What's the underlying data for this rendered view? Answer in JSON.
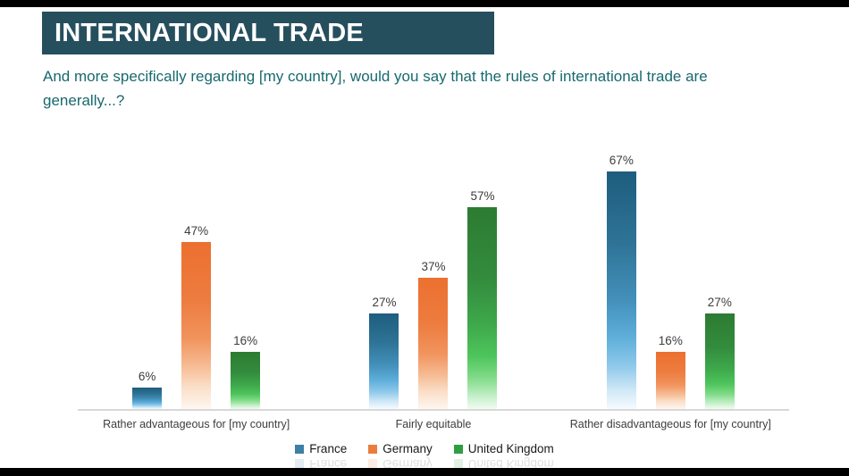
{
  "header": {
    "title": "INTERNATIONAL TRADE"
  },
  "question": {
    "text": "And more specifically regarding [my country], would you say that the rules of international trade are generally...?"
  },
  "colors": {
    "frame": "#000000",
    "slide_background": "#ffffff",
    "banner_background": "#264f5e",
    "banner_text": "#ffffff",
    "question_text": "#17696f",
    "axis_line": "#d8d8d8",
    "label_text": "#3d3d3d"
  },
  "chart_data": {
    "type": "bar",
    "title": "",
    "xlabel": "",
    "ylabel": "",
    "ylim": [
      0,
      70
    ],
    "grid": false,
    "data_labels": true,
    "value_suffix": "%",
    "legend_position": "bottom",
    "categories": [
      "Rather advantageous for [my country]",
      "Fairly equitable",
      "Rather disadvantageous for [my country]"
    ],
    "series": [
      {
        "name": "France",
        "values": [
          6,
          27,
          67
        ],
        "color": "#3d7fa5",
        "gradient": [
          [
            "0%",
            "#1e5d7e"
          ],
          [
            "30%",
            "#2e7396"
          ],
          [
            "55%",
            "#4491bc"
          ],
          [
            "70%",
            "#5fafdb"
          ],
          [
            "82%",
            "#8fc9ea"
          ],
          [
            "92%",
            "#cfe8f7"
          ],
          [
            "100%",
            "#f5fbfe"
          ]
        ]
      },
      {
        "name": "Germany",
        "values": [
          47,
          37,
          16
        ],
        "color": "#ec7c3e",
        "gradient": [
          [
            "0%",
            "#ec7030"
          ],
          [
            "35%",
            "#ed7c3f"
          ],
          [
            "58%",
            "#f1945e"
          ],
          [
            "74%",
            "#f6bb93"
          ],
          [
            "87%",
            "#fadfc9"
          ],
          [
            "100%",
            "#fef6f0"
          ]
        ]
      },
      {
        "name": "United Kingdom",
        "values": [
          16,
          57,
          27
        ],
        "color": "#2f9e41",
        "gradient": [
          [
            "0%",
            "#2c7b32"
          ],
          [
            "35%",
            "#338b3d"
          ],
          [
            "58%",
            "#3ea84b"
          ],
          [
            "74%",
            "#4ec55c"
          ],
          [
            "85%",
            "#83dc8b"
          ],
          [
            "94%",
            "#c6f0ca"
          ],
          [
            "100%",
            "#f2fbf3"
          ]
        ]
      }
    ]
  }
}
